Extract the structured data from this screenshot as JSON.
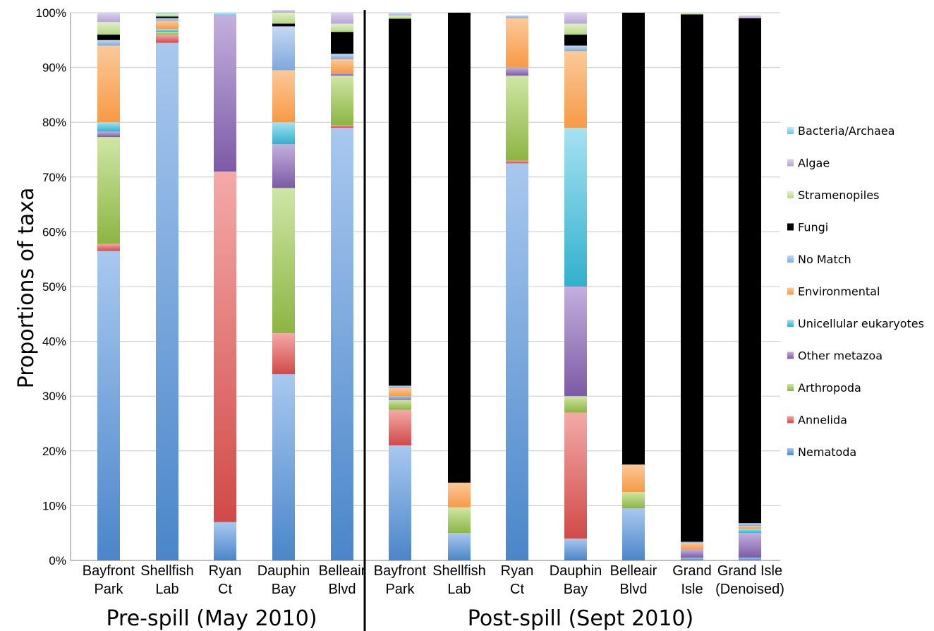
{
  "chart_data": {
    "type": "bar",
    "stacked": true,
    "ylabel": "Proportions of taxa",
    "ylim": [
      0,
      100
    ],
    "y_ticks": [
      "0%",
      "10%",
      "20%",
      "30%",
      "40%",
      "50%",
      "60%",
      "70%",
      "80%",
      "90%",
      "100%"
    ],
    "legend_position": "right",
    "groups": [
      {
        "label": "Pre-spill (May 2010)",
        "categories": [
          "Bayfront Park",
          "Shellfish Lab",
          "Ryan Ct",
          "Dauphin Bay",
          "Belleair Blvd"
        ]
      },
      {
        "label": "Post-spill (Sept 2010)",
        "categories": [
          "Bayfront Park",
          "Shellfish Lab",
          "Ryan Ct",
          "Dauphin Bay",
          "Belleair Blvd",
          "Grand Isle",
          "Grand Isle (Denoised)"
        ]
      }
    ],
    "categories": [
      [
        "Bayfront",
        "Park"
      ],
      [
        "Shellfish",
        "Lab"
      ],
      [
        "Ryan",
        "Ct"
      ],
      [
        "Dauphin",
        "Bay"
      ],
      [
        "Belleair",
        "Blvd"
      ],
      [
        "Bayfront",
        "Park"
      ],
      [
        "Shellfish",
        "Lab"
      ],
      [
        "Ryan",
        "Ct"
      ],
      [
        "Dauphin",
        "Bay"
      ],
      [
        "Belleair",
        "Blvd"
      ],
      [
        "Grand",
        "Isle"
      ],
      [
        "Grand Isle",
        "(Denoised)"
      ]
    ],
    "series": [
      {
        "name": "Nematoda",
        "color": "#4a86c9",
        "light": "#a9c8ef",
        "values": [
          56.5,
          94.5,
          7.0,
          34.0,
          79.0,
          21.0,
          5.0,
          72.5,
          4.0,
          9.5,
          0.5,
          0.5
        ]
      },
      {
        "name": "Annelida",
        "color": "#d04a48",
        "light": "#f4aaa8",
        "values": [
          1.3,
          1.5,
          64.0,
          7.5,
          0.5,
          6.5,
          0.0,
          0.5,
          23.0,
          0.0,
          0.0,
          0.0
        ]
      },
      {
        "name": "Arthropoda",
        "color": "#8cb542",
        "light": "#cfe6a6",
        "values": [
          19.5,
          0.5,
          0.0,
          26.5,
          9.0,
          1.8,
          4.7,
          15.5,
          3.0,
          3.0,
          0.0,
          0.0
        ]
      },
      {
        "name": "Other metazoa",
        "color": "#7d5aa6",
        "light": "#c3b0dd",
        "values": [
          1.0,
          0.0,
          28.5,
          8.0,
          0.5,
          0.4,
          0.0,
          1.5,
          20.0,
          0.0,
          1.5,
          4.5
        ]
      },
      {
        "name": "Unicellular eukaryotes",
        "color": "#32b0cc",
        "light": "#a6e2f2",
        "values": [
          1.7,
          0.5,
          0.0,
          4.0,
          0.0,
          0.3,
          0.0,
          0.0,
          29.0,
          0.0,
          0.0,
          0.8
        ]
      },
      {
        "name": "Environmental",
        "color": "#f79a45",
        "light": "#fbc99a",
        "values": [
          14.0,
          1.5,
          0.0,
          9.5,
          2.5,
          1.5,
          4.5,
          9.0,
          14.0,
          5.0,
          1.2,
          0.5
        ]
      },
      {
        "name": "No Match",
        "color": "#7ea8dc",
        "light": "#c5d9f1",
        "values": [
          1.0,
          0.5,
          0.0,
          8.0,
          1.0,
          0.4,
          0.0,
          0.5,
          1.0,
          0.0,
          0.2,
          0.5
        ]
      },
      {
        "name": "Fungi",
        "color": "#000000",
        "light": "#000000",
        "values": [
          1.0,
          0.3,
          0.0,
          0.5,
          4.0,
          67.0,
          85.8,
          0.0,
          2.0,
          82.5,
          96.3,
          92.2
        ]
      },
      {
        "name": "Stramenopiles",
        "color": "#b8d68a",
        "light": "#dff0c6",
        "values": [
          2.3,
          0.5,
          0.0,
          2.0,
          1.5,
          0.6,
          0.0,
          0.0,
          2.0,
          0.0,
          0.3,
          0.0
        ]
      },
      {
        "name": "Algae",
        "color": "#b8a4d6",
        "light": "#dcd2ec",
        "values": [
          1.7,
          0.0,
          0.0,
          0.5,
          2.0,
          0.4,
          0.0,
          0.0,
          2.0,
          0.0,
          0.0,
          0.5
        ]
      },
      {
        "name": "Bacteria/Archaea",
        "color": "#6cc6e0",
        "light": "#c2e8f4",
        "values": [
          0.0,
          0.2,
          0.5,
          0.0,
          0.0,
          0.1,
          0.0,
          0.0,
          0.0,
          0.0,
          0.0,
          0.0
        ]
      }
    ],
    "legend_order": [
      "Bacteria/Archaea",
      "Algae",
      "Stramenopiles",
      "Fungi",
      "No Match",
      "Environmental",
      "Unicellular eukaryotes",
      "Other metazoa",
      "Arthropoda",
      "Annelida",
      "Nematoda"
    ]
  }
}
